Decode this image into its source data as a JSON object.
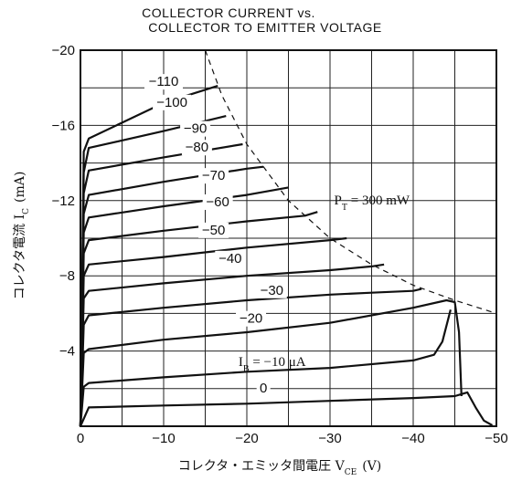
{
  "chart_data": {
    "type": "line",
    "title": [
      "COLLECTOR CURRENT vs.",
      "COLLECTOR TO EMITTER VOLTAGE"
    ],
    "xlabel": "コレクタ・エミッタ間電圧  V",
    "xlabel_sub": "CE",
    "xlabel_unit": "(V)",
    "ylabel": "コレクタ電流  I",
    "ylabel_sub": "C",
    "ylabel_unit": "(mA)",
    "xlim": [
      0,
      -50
    ],
    "ylim": [
      0,
      -20
    ],
    "x_ticks": [
      0,
      -10,
      -20,
      -30,
      -40,
      -50
    ],
    "x_tick_labels": [
      "0",
      "−10",
      "−20",
      "−30",
      "−40",
      "−50"
    ],
    "y_ticks": [
      -4,
      -8,
      -12,
      -16,
      -20
    ],
    "y_tick_labels": [
      "−4",
      "−8",
      "−12",
      "−16",
      "−20"
    ],
    "grid": true,
    "series": [
      {
        "label": "0",
        "values": [
          [
            0,
            0
          ],
          [
            -1,
            -1.0
          ],
          [
            -10,
            -1.1
          ],
          [
            -20,
            -1.2
          ],
          [
            -30,
            -1.35
          ],
          [
            -40,
            -1.5
          ],
          [
            -45,
            -1.6
          ],
          [
            -46.5,
            -1.8
          ],
          [
            -47.5,
            -1.0
          ],
          [
            -48.5,
            -0.3
          ],
          [
            -49.5,
            -0.05
          ]
        ]
      },
      {
        "label": "−10",
        "values": [
          [
            0,
            0
          ],
          [
            -0.4,
            -2.1
          ],
          [
            -1,
            -2.3
          ],
          [
            -10,
            -2.6
          ],
          [
            -20,
            -2.9
          ],
          [
            -30,
            -3.1
          ],
          [
            -40,
            -3.5
          ],
          [
            -42.5,
            -3.8
          ],
          [
            -43.5,
            -4.5
          ],
          [
            -44.5,
            -6.2
          ]
        ]
      },
      {
        "label": "−20",
        "values": [
          [
            0,
            0
          ],
          [
            -0.4,
            -3.9
          ],
          [
            -1,
            -4.1
          ],
          [
            -10,
            -4.6
          ],
          [
            -20,
            -5.0
          ],
          [
            -30,
            -5.5
          ],
          [
            -40,
            -6.3
          ],
          [
            -44,
            -6.7
          ],
          [
            -45,
            -6.6
          ],
          [
            -45.5,
            -5.0
          ],
          [
            -45.8,
            -1.6
          ]
        ]
      },
      {
        "label": "−30",
        "values": [
          [
            0,
            0
          ],
          [
            -0.4,
            -5.4
          ],
          [
            -1,
            -5.9
          ],
          [
            -10,
            -6.3
          ],
          [
            -20,
            -6.7
          ],
          [
            -30,
            -7.0
          ],
          [
            -35,
            -7.1
          ],
          [
            -40,
            -7.2
          ],
          [
            -41,
            -7.3
          ]
        ]
      },
      {
        "label": "−40",
        "values": [
          [
            0,
            0
          ],
          [
            -0.4,
            -6.8
          ],
          [
            -1,
            -7.2
          ],
          [
            -10,
            -7.6
          ],
          [
            -20,
            -8.0
          ],
          [
            -30,
            -8.3
          ],
          [
            -35,
            -8.5
          ],
          [
            -36.5,
            -8.6
          ]
        ]
      },
      {
        "label": "−50",
        "values": [
          [
            0,
            0
          ],
          [
            -0.4,
            -8.0
          ],
          [
            -1,
            -8.6
          ],
          [
            -10,
            -9.0
          ],
          [
            -20,
            -9.5
          ],
          [
            -30,
            -9.9
          ],
          [
            -32,
            -10.0
          ]
        ]
      },
      {
        "label": "−60",
        "values": [
          [
            0,
            0
          ],
          [
            -0.4,
            -9.2
          ],
          [
            -1,
            -9.9
          ],
          [
            -10,
            -10.4
          ],
          [
            -20,
            -10.9
          ],
          [
            -27,
            -11.2
          ],
          [
            -28.5,
            -11.4
          ]
        ]
      },
      {
        "label": "−70",
        "values": [
          [
            0,
            0
          ],
          [
            -0.4,
            -10.3
          ],
          [
            -1,
            -11.1
          ],
          [
            -10,
            -11.7
          ],
          [
            -20,
            -12.3
          ],
          [
            -25,
            -12.7
          ]
        ]
      },
      {
        "label": "−80",
        "values": [
          [
            0,
            0
          ],
          [
            -0.4,
            -11.3
          ],
          [
            -1,
            -12.3
          ],
          [
            -10,
            -13.0
          ],
          [
            -20,
            -13.7
          ],
          [
            -22,
            -13.8
          ]
        ]
      },
      {
        "label": "−90",
        "values": [
          [
            0,
            0
          ],
          [
            -0.4,
            -12.4
          ],
          [
            -1,
            -13.6
          ],
          [
            -10,
            -14.3
          ],
          [
            -19.5,
            -15.0
          ]
        ]
      },
      {
        "label": "−100",
        "values": [
          [
            0,
            0
          ],
          [
            -0.4,
            -13.5
          ],
          [
            -1,
            -14.8
          ],
          [
            -10,
            -15.7
          ],
          [
            -17.5,
            -16.5
          ]
        ]
      },
      {
        "label": "−110",
        "values": [
          [
            0,
            0
          ],
          [
            -0.4,
            -14.6
          ],
          [
            -1,
            -15.3
          ],
          [
            -10,
            -17.2
          ],
          [
            -16.5,
            -18.1
          ]
        ]
      }
    ],
    "curve_label_positions": [
      {
        "label": "0",
        "x": -22,
        "y": -1.8
      },
      {
        "label": "−20",
        "x": -20.5,
        "y": -5.5
      },
      {
        "label": "−30",
        "x": -23,
        "y": -7.0
      },
      {
        "label": "−40",
        "x": -18,
        "y": -8.7
      },
      {
        "label": "−50",
        "x": -16,
        "y": -10.2
      },
      {
        "label": "−60",
        "x": -16.5,
        "y": -11.7
      },
      {
        "label": "−70",
        "x": -16,
        "y": -13.1
      },
      {
        "label": "−80",
        "x": -14,
        "y": -14.6
      },
      {
        "label": "−90",
        "x": -13.8,
        "y": -15.6
      },
      {
        "label": "−100",
        "x": -11,
        "y": -17.0
      },
      {
        "label": "−110",
        "x": -10,
        "y": -18.1
      }
    ],
    "ib_label": {
      "prefix": "I",
      "sub": "B",
      "text": " =  −10  μA",
      "x": -19,
      "y": -3.2
    },
    "power_limit": {
      "label_prefix": "P",
      "label_sub": "T",
      "label_text": " = 300  mW",
      "label_pos": {
        "x": -30.5,
        "y": -11.8
      },
      "values": [
        [
          -15,
          -20
        ],
        [
          -17,
          -17.6
        ],
        [
          -20,
          -15
        ],
        [
          -25,
          -12
        ],
        [
          -30,
          -10
        ],
        [
          -35,
          -8.6
        ],
        [
          -40,
          -7.5
        ],
        [
          -45,
          -6.7
        ],
        [
          -50,
          -6.0
        ]
      ]
    }
  }
}
